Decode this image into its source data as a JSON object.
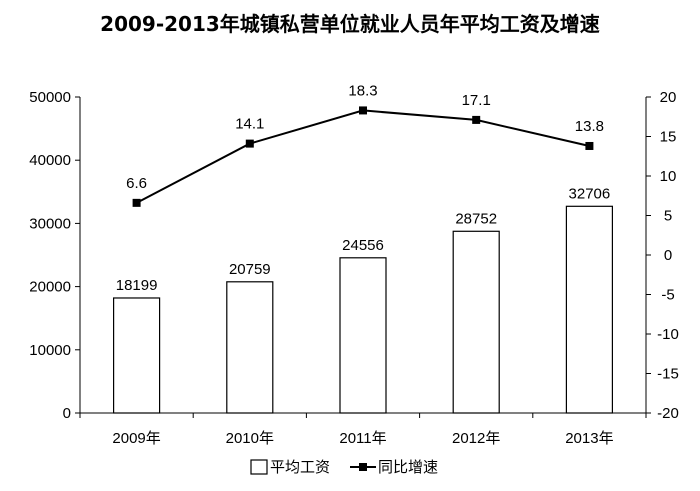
{
  "chart_data": {
    "type": "bar",
    "title": "2009-2013年城镇私营单位就业人员年平均工资及增速",
    "categories": [
      "2009年",
      "2010年",
      "2011年",
      "2012年",
      "2013年"
    ],
    "series": [
      {
        "name": "平均工资",
        "type": "bar",
        "axis": "left",
        "values": [
          18199,
          20759,
          24556,
          28752,
          32706
        ]
      },
      {
        "name": "同比增速",
        "type": "line",
        "axis": "right",
        "values": [
          6.6,
          14.1,
          18.3,
          17.1,
          13.8
        ]
      }
    ],
    "y_left": {
      "min": 0,
      "max": 50000,
      "ticks": [
        "0",
        "10000",
        "20000",
        "30000",
        "40000",
        "50000"
      ]
    },
    "y_right": {
      "min": -20,
      "max": 20,
      "ticks": [
        "-20",
        "-15",
        "-10",
        "-5",
        "0",
        "5",
        "10",
        "15",
        "20"
      ]
    },
    "bar_labels": [
      "18199",
      "20759",
      "24556",
      "28752",
      "32706"
    ],
    "line_labels": [
      "6.6",
      "14.1",
      "18.3",
      "17.1",
      "13.8"
    ],
    "legend": {
      "position": "bottom",
      "items": [
        "平均工资",
        "同比增速"
      ]
    },
    "grid": false,
    "colors": {
      "bar_fill": "#ffffff",
      "bar_stroke": "#000000",
      "line": "#000000"
    }
  }
}
